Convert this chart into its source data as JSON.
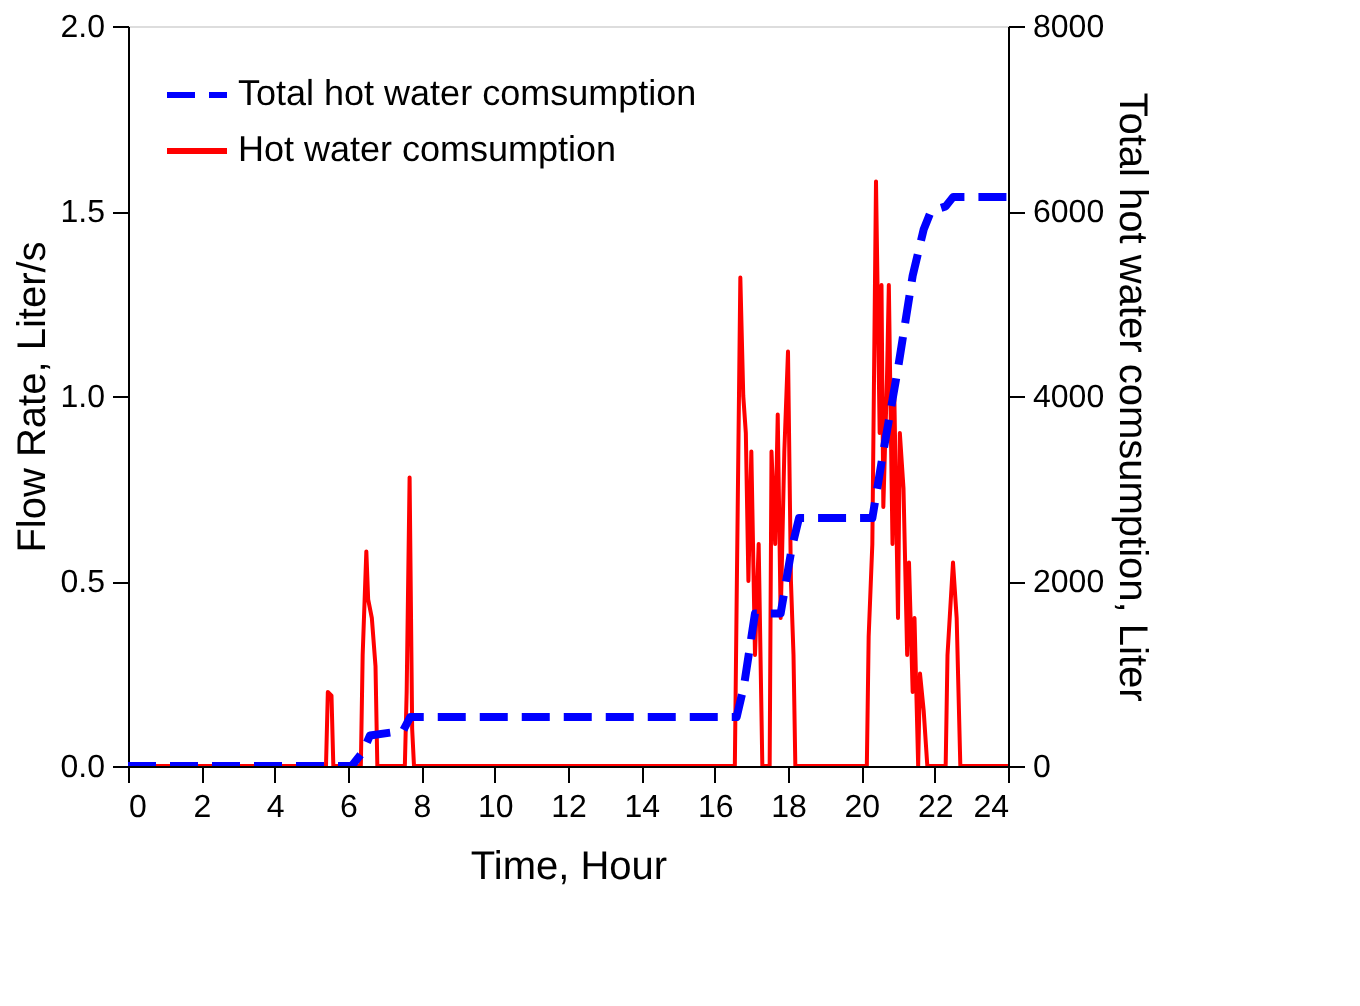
{
  "chart_data": {
    "type": "line",
    "xlabel": "Time, Hour",
    "ylabel": "Flow Rate, Liter/s",
    "y2label": "Total hot water comsumption, Liter",
    "xlim": [
      0,
      24
    ],
    "xticks": [
      0,
      2,
      4,
      6,
      8,
      10,
      12,
      14,
      16,
      18,
      20,
      22,
      24
    ],
    "ylim": [
      0,
      2.0
    ],
    "yticks": [
      {
        "value": 0,
        "label": "0.0"
      },
      {
        "value": 0.5,
        "label": "0.5"
      },
      {
        "value": 1.0,
        "label": "1.0"
      },
      {
        "value": 1.5,
        "label": "1.5"
      },
      {
        "value": 2.0,
        "label": "2.0"
      }
    ],
    "y2lim": [
      0,
      8000
    ],
    "y2ticks": [
      0,
      2000,
      4000,
      6000,
      8000
    ],
    "grid": false,
    "legend": "top left",
    "marker": "none",
    "series": [
      {
        "name": "Total hot water comsumption",
        "color": "#0000ff",
        "axis": "y2",
        "line_style": "dashed",
        "x": [
          0,
          6.1,
          6.4,
          6.6,
          7.5,
          7.7,
          16.6,
          16.8,
          17.1,
          17.8,
          18.1,
          18.3,
          20.3,
          20.6,
          21.0,
          21.4,
          21.7,
          21.9,
          22.3,
          22.5,
          24
        ],
        "values": [
          0,
          0,
          150,
          330,
          380,
          530,
          530,
          870,
          1650,
          1650,
          2350,
          2680,
          2680,
          3400,
          4300,
          5300,
          5800,
          6000,
          6050,
          6150,
          6150
        ]
      },
      {
        "name": "Hot water comsumption",
        "color": "#ff0000",
        "line_style": "solid",
        "x": [
          0,
          5.4,
          5.45,
          5.55,
          5.6,
          6.35,
          6.4,
          6.5,
          6.55,
          6.65,
          6.75,
          6.8,
          7.55,
          7.6,
          7.68,
          7.75,
          7.8,
          16.55,
          16.6,
          16.7,
          16.78,
          16.85,
          16.92,
          17.0,
          17.1,
          17.2,
          17.3,
          17.5,
          17.55,
          17.65,
          17.72,
          17.8,
          17.9,
          18.0,
          18.08,
          18.15,
          18.2,
          20.15,
          20.2,
          20.3,
          20.4,
          20.5,
          20.55,
          20.6,
          20.7,
          20.75,
          20.85,
          20.9,
          21.0,
          21.05,
          21.15,
          21.25,
          21.3,
          21.4,
          21.45,
          21.55,
          21.6,
          21.7,
          21.8,
          22.3,
          22.35,
          22.5,
          22.6,
          22.7,
          24
        ],
        "values": [
          0,
          0,
          0.2,
          0.19,
          0,
          0,
          0.3,
          0.58,
          0.45,
          0.4,
          0.27,
          0,
          0,
          0.2,
          0.78,
          0.1,
          0,
          0,
          0.45,
          1.32,
          1.0,
          0.9,
          0.5,
          0.85,
          0.3,
          0.6,
          0,
          0,
          0.85,
          0.6,
          0.95,
          0.4,
          0.85,
          1.12,
          0.5,
          0.3,
          0,
          0,
          0.35,
          0.6,
          1.58,
          0.9,
          1.3,
          0.7,
          1.05,
          1.3,
          0.6,
          1.0,
          0.4,
          0.9,
          0.75,
          0.3,
          0.55,
          0.2,
          0.4,
          0,
          0.25,
          0.15,
          0,
          0,
          0.3,
          0.55,
          0.4,
          0,
          0
        ]
      }
    ]
  }
}
